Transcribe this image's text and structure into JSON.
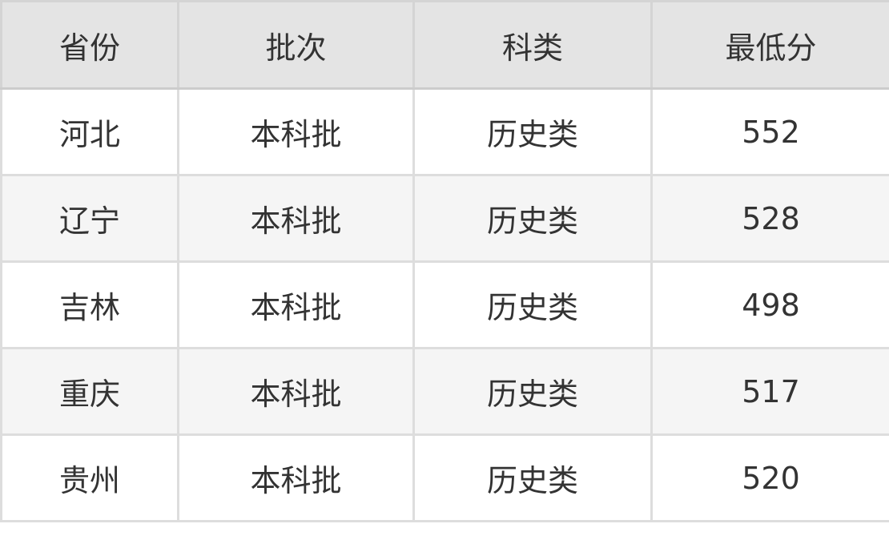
{
  "table": {
    "headers": [
      "省份",
      "批次",
      "科类",
      "最低分"
    ],
    "rows": [
      [
        "河北",
        "本科批",
        "历史类",
        "552"
      ],
      [
        "辽宁",
        "本科批",
        "历史类",
        "528"
      ],
      [
        "吉林",
        "本科批",
        "历史类",
        "498"
      ],
      [
        "重庆",
        "本科批",
        "历史类",
        "517"
      ],
      [
        "贵州",
        "本科批",
        "历史类",
        "520"
      ]
    ]
  }
}
